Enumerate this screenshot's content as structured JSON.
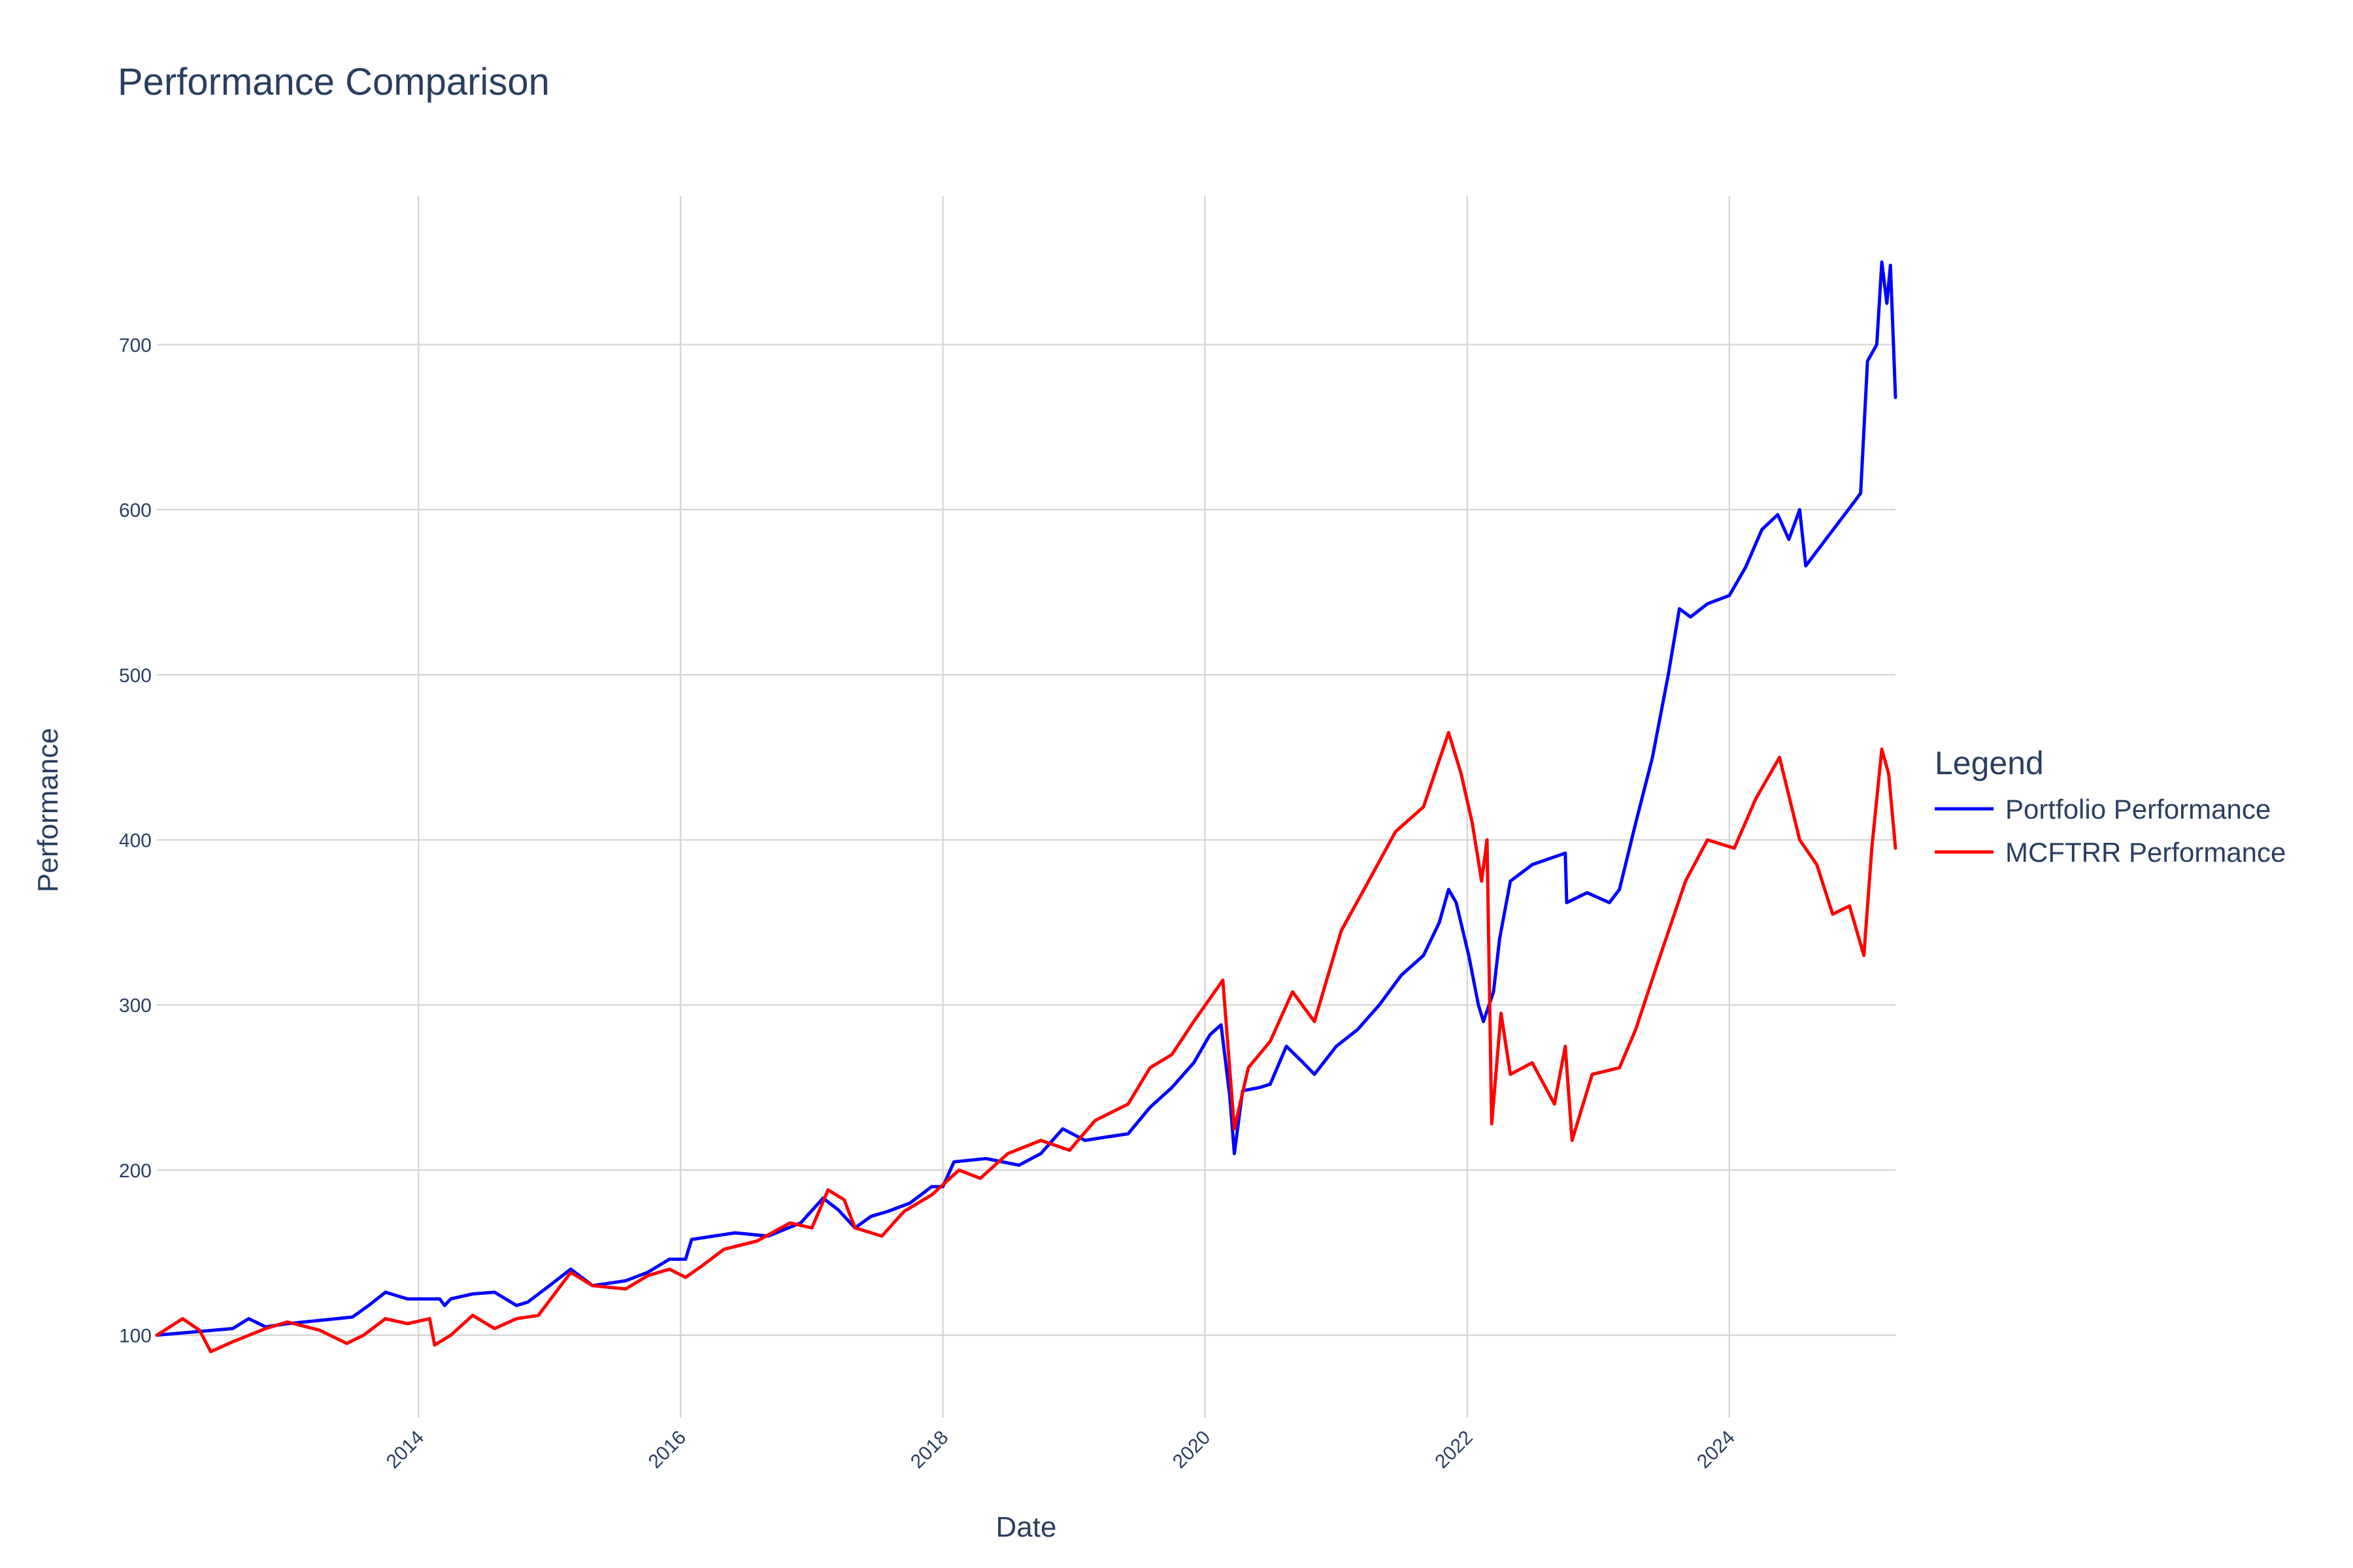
{
  "chart_data": {
    "type": "line",
    "title": "Performance Comparison",
    "xlabel": "Date",
    "ylabel": "Performance",
    "xlim": [
      "2012-01-03",
      "2025-04-08"
    ],
    "ylim": [
      50,
      790
    ],
    "x_ticks": [
      "2014-01-01",
      "2016-01-01",
      "2018-01-01",
      "2020-01-01",
      "2022-01-01",
      "2024-01-01"
    ],
    "x_tick_labels": [
      "2014",
      "2016",
      "2018",
      "2020",
      "2022",
      "2024"
    ],
    "y_ticks": [
      100,
      200,
      300,
      400,
      500,
      600,
      700
    ],
    "y_tick_labels": [
      "100",
      "200",
      "300",
      "400",
      "500",
      "600",
      "700"
    ],
    "grid": true,
    "legend_title": "Legend",
    "legend_position": "right",
    "series": [
      {
        "name": "Portfolio Performance",
        "color": "#0000ff",
        "points": [
          [
            "2012-01-03",
            100
          ],
          [
            "2012-08-01",
            104
          ],
          [
            "2012-09-15",
            110
          ],
          [
            "2012-11-01",
            105
          ],
          [
            "2013-01-01",
            107
          ],
          [
            "2013-07-01",
            111
          ],
          [
            "2013-08-15",
            118
          ],
          [
            "2013-10-01",
            126
          ],
          [
            "2013-12-01",
            122
          ],
          [
            "2014-03-01",
            122
          ],
          [
            "2014-03-15",
            118
          ],
          [
            "2014-04-01",
            122
          ],
          [
            "2014-06-01",
            125
          ],
          [
            "2014-08-01",
            126
          ],
          [
            "2014-10-01",
            118
          ],
          [
            "2014-11-01",
            120
          ],
          [
            "2015-01-01",
            130
          ],
          [
            "2015-03-01",
            140
          ],
          [
            "2015-05-01",
            130
          ],
          [
            "2015-08-01",
            133
          ],
          [
            "2015-10-01",
            138
          ],
          [
            "2015-12-01",
            146
          ],
          [
            "2016-01-15",
            146
          ],
          [
            "2016-02-01",
            158
          ],
          [
            "2016-06-01",
            162
          ],
          [
            "2016-09-01",
            160
          ],
          [
            "2016-12-01",
            168
          ],
          [
            "2017-02-01",
            183
          ],
          [
            "2017-03-15",
            176
          ],
          [
            "2017-05-01",
            165
          ],
          [
            "2017-06-15",
            172
          ],
          [
            "2017-08-01",
            175
          ],
          [
            "2017-10-01",
            180
          ],
          [
            "2017-12-01",
            190
          ],
          [
            "2018-01-01",
            190
          ],
          [
            "2018-02-01",
            205
          ],
          [
            "2018-05-01",
            207
          ],
          [
            "2018-08-01",
            203
          ],
          [
            "2018-10-01",
            210
          ],
          [
            "2018-12-01",
            225
          ],
          [
            "2019-02-01",
            218
          ],
          [
            "2019-04-01",
            220
          ],
          [
            "2019-06-01",
            222
          ],
          [
            "2019-08-01",
            238
          ],
          [
            "2019-10-01",
            250
          ],
          [
            "2019-12-01",
            265
          ],
          [
            "2020-01-15",
            282
          ],
          [
            "2020-02-15",
            288
          ],
          [
            "2020-03-10",
            245
          ],
          [
            "2020-03-23",
            210
          ],
          [
            "2020-04-15",
            248
          ],
          [
            "2020-06-01",
            250
          ],
          [
            "2020-07-01",
            252
          ],
          [
            "2020-08-15",
            275
          ],
          [
            "2020-10-01",
            265
          ],
          [
            "2020-11-01",
            258
          ],
          [
            "2021-01-01",
            275
          ],
          [
            "2021-03-01",
            285
          ],
          [
            "2021-05-01",
            300
          ],
          [
            "2021-07-01",
            318
          ],
          [
            "2021-09-01",
            330
          ],
          [
            "2021-10-15",
            350
          ],
          [
            "2021-11-10",
            370
          ],
          [
            "2021-12-01",
            362
          ],
          [
            "2022-01-05",
            330
          ],
          [
            "2022-02-01",
            300
          ],
          [
            "2022-02-15",
            290
          ],
          [
            "2022-03-15",
            308
          ],
          [
            "2022-04-01",
            340
          ],
          [
            "2022-05-01",
            375
          ],
          [
            "2022-07-01",
            385
          ],
          [
            "2022-10-01",
            392
          ],
          [
            "2022-10-05",
            362
          ],
          [
            "2022-12-01",
            368
          ],
          [
            "2023-02-01",
            362
          ],
          [
            "2023-03-01",
            370
          ],
          [
            "2023-04-15",
            410
          ],
          [
            "2023-06-01",
            450
          ],
          [
            "2023-07-15",
            500
          ],
          [
            "2023-08-15",
            540
          ],
          [
            "2023-09-15",
            535
          ],
          [
            "2023-11-01",
            543
          ],
          [
            "2024-01-01",
            548
          ],
          [
            "2024-02-15",
            565
          ],
          [
            "2024-04-01",
            588
          ],
          [
            "2024-05-15",
            597
          ],
          [
            "2024-06-15",
            582
          ],
          [
            "2024-07-15",
            600
          ],
          [
            "2024-08-01",
            566
          ],
          [
            "2024-12-15",
            605
          ],
          [
            "2025-01-01",
            610
          ],
          [
            "2025-01-20",
            690
          ],
          [
            "2025-02-15",
            700
          ],
          [
            "2025-03-01",
            750
          ],
          [
            "2025-03-15",
            725
          ],
          [
            "2025-03-25",
            748
          ],
          [
            "2025-04-08",
            668
          ]
        ]
      },
      {
        "name": "MCFTRR Performance",
        "color": "#ff0000",
        "points": [
          [
            "2012-01-03",
            100
          ],
          [
            "2012-03-15",
            110
          ],
          [
            "2012-05-01",
            103
          ],
          [
            "2012-06-01",
            90
          ],
          [
            "2012-08-01",
            96
          ],
          [
            "2012-11-01",
            104
          ],
          [
            "2013-01-01",
            108
          ],
          [
            "2013-04-01",
            103
          ],
          [
            "2013-06-15",
            95
          ],
          [
            "2013-08-01",
            100
          ],
          [
            "2013-10-01",
            110
          ],
          [
            "2013-12-01",
            107
          ],
          [
            "2014-02-01",
            110
          ],
          [
            "2014-02-15",
            94
          ],
          [
            "2014-04-01",
            100
          ],
          [
            "2014-06-01",
            112
          ],
          [
            "2014-08-01",
            104
          ],
          [
            "2014-10-01",
            110
          ],
          [
            "2014-12-01",
            112
          ],
          [
            "2015-03-01",
            138
          ],
          [
            "2015-05-01",
            130
          ],
          [
            "2015-08-01",
            128
          ],
          [
            "2015-10-01",
            136
          ],
          [
            "2015-12-01",
            140
          ],
          [
            "2016-01-15",
            135
          ],
          [
            "2016-03-01",
            142
          ],
          [
            "2016-05-01",
            152
          ],
          [
            "2016-08-01",
            157
          ],
          [
            "2016-11-01",
            168
          ],
          [
            "2017-01-01",
            165
          ],
          [
            "2017-02-15",
            188
          ],
          [
            "2017-04-01",
            182
          ],
          [
            "2017-05-01",
            165
          ],
          [
            "2017-07-15",
            160
          ],
          [
            "2017-09-15",
            175
          ],
          [
            "2017-12-01",
            185
          ],
          [
            "2018-02-15",
            200
          ],
          [
            "2018-04-15",
            195
          ],
          [
            "2018-07-01",
            210
          ],
          [
            "2018-10-01",
            218
          ],
          [
            "2018-12-20",
            212
          ],
          [
            "2019-03-01",
            230
          ],
          [
            "2019-06-01",
            240
          ],
          [
            "2019-08-01",
            262
          ],
          [
            "2019-10-01",
            270
          ],
          [
            "2019-12-01",
            290
          ],
          [
            "2020-02-20",
            315
          ],
          [
            "2020-03-23",
            225
          ],
          [
            "2020-05-01",
            262
          ],
          [
            "2020-07-01",
            278
          ],
          [
            "2020-09-01",
            308
          ],
          [
            "2020-11-01",
            290
          ],
          [
            "2021-01-15",
            345
          ],
          [
            "2021-04-01",
            375
          ],
          [
            "2021-06-15",
            405
          ],
          [
            "2021-09-01",
            420
          ],
          [
            "2021-11-10",
            465
          ],
          [
            "2021-12-15",
            440
          ],
          [
            "2022-01-15",
            410
          ],
          [
            "2022-02-10",
            375
          ],
          [
            "2022-02-25",
            400
          ],
          [
            "2022-03-10",
            228
          ],
          [
            "2022-04-05",
            295
          ],
          [
            "2022-05-01",
            258
          ],
          [
            "2022-07-01",
            265
          ],
          [
            "2022-09-01",
            240
          ],
          [
            "2022-10-01",
            275
          ],
          [
            "2022-10-20",
            218
          ],
          [
            "2022-12-15",
            258
          ],
          [
            "2023-03-01",
            262
          ],
          [
            "2023-04-15",
            285
          ],
          [
            "2023-06-15",
            325
          ],
          [
            "2023-09-01",
            375
          ],
          [
            "2023-11-01",
            400
          ],
          [
            "2024-01-15",
            395
          ],
          [
            "2024-03-15",
            425
          ],
          [
            "2024-05-20",
            450
          ],
          [
            "2024-07-15",
            400
          ],
          [
            "2024-09-01",
            385
          ],
          [
            "2024-10-15",
            355
          ],
          [
            "2024-12-01",
            360
          ],
          [
            "2025-01-10",
            330
          ],
          [
            "2025-02-01",
            395
          ],
          [
            "2025-03-01",
            455
          ],
          [
            "2025-03-20",
            440
          ],
          [
            "2025-04-08",
            395
          ]
        ]
      }
    ]
  }
}
